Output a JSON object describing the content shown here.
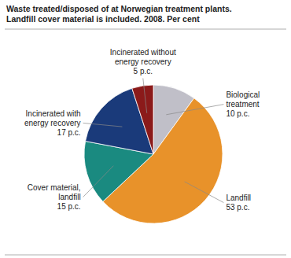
{
  "chart_data": {
    "type": "pie",
    "title": "Waste treated/disposed of at Norwegian treatment plants.\nLandfill cover material is included. 2008. Per cent",
    "categories": [
      "Biological\ntreatment\n10 p.c.",
      "Landfill\n53 p.c.",
      "Cover material,\nlandfill\n15 p.c.",
      "Incinerated with\nenergy recovery\n17 p.c.",
      "Incinerated without\nenergy recovery\n5 p.c."
    ],
    "values": [
      10,
      53,
      15,
      17,
      5
    ],
    "colors": [
      "#C0BFC8",
      "#E8922A",
      "#1A8A80",
      "#1A3A7A",
      "#8B1A1A"
    ]
  }
}
